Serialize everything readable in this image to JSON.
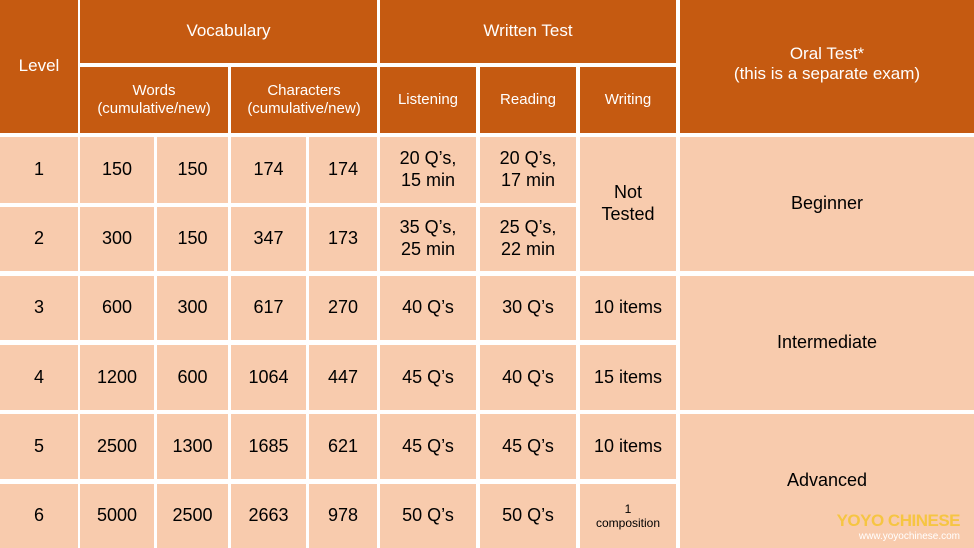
{
  "header": {
    "level": "Level",
    "vocabulary": "Vocabulary",
    "written_test": "Written Test",
    "oral_test": "Oral Test*\n(this is a separate exam)",
    "words": "Words\n(cumulative/new)",
    "characters": "Characters\n(cumulative/new)",
    "listening": "Listening",
    "reading": "Reading",
    "writing": "Writing"
  },
  "table": {
    "rows": [
      [
        "1",
        "150",
        "150",
        "174",
        "174",
        "20 Q’s,\n15 min",
        "20 Q’s,\n17 min"
      ],
      [
        "2",
        "300",
        "150",
        "347",
        "173",
        "35 Q’s,\n25 min",
        "25 Q’s,\n22 min"
      ],
      [
        "3",
        "600",
        "300",
        "617",
        "270",
        "40 Q’s",
        "30 Q’s"
      ],
      [
        "4",
        "1200",
        "600",
        "1064",
        "447",
        "45 Q’s",
        "40 Q’s"
      ],
      [
        "5",
        "2500",
        "1300",
        "1685",
        "621",
        "45 Q’s",
        "45 Q’s"
      ],
      [
        "6",
        "5000",
        "2500",
        "2663",
        "978",
        "50 Q’s",
        "50 Q’s"
      ]
    ],
    "writing": [
      "Not\nTested",
      "10 items",
      "15 items",
      "10 items",
      "1\ncomposition"
    ],
    "oral": [
      "Beginner",
      "Intermediate",
      "Advanced"
    ]
  },
  "logo": {
    "title": "YOYO CHINESE",
    "url": "www.yoyochinese.com"
  }
}
